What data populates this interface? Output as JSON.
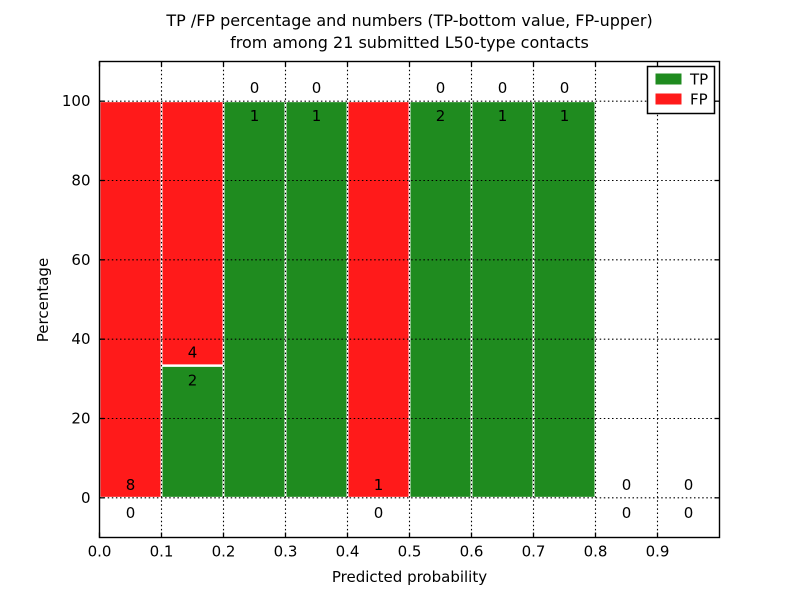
{
  "chart_data": {
    "type": "bar",
    "stacked": true,
    "title_lines": [
      "TP /FP percentage and numbers (TP-bottom value, FP-upper)",
      "from among 21 submitted L50-type contacts"
    ],
    "xlabel": "Predicted probability",
    "ylabel": "Percentage",
    "xlim": [
      0.0,
      1.0
    ],
    "ylim": [
      -10,
      110
    ],
    "xticks": [
      "0.0",
      "0.1",
      "0.2",
      "0.3",
      "0.4",
      "0.5",
      "0.6",
      "0.7",
      "0.8",
      "0.9"
    ],
    "yticks": [
      0,
      20,
      40,
      60,
      80,
      100
    ],
    "grid": true,
    "total_contacts": 21,
    "colors": {
      "tp": "#1f8b1f",
      "fp": "#ff1a1a"
    },
    "legend": {
      "position": "upper right",
      "entries": [
        {
          "label": "TP",
          "color": "#1f8b1f"
        },
        {
          "label": "FP",
          "color": "#ff1a1a"
        }
      ]
    },
    "bins": [
      {
        "range": [
          0.0,
          0.1
        ],
        "tp": 0,
        "fp": 8,
        "tp_pct": 0.0,
        "fp_pct": 100.0
      },
      {
        "range": [
          0.1,
          0.2
        ],
        "tp": 2,
        "fp": 4,
        "tp_pct": 33.333,
        "fp_pct": 66.667
      },
      {
        "range": [
          0.2,
          0.3
        ],
        "tp": 1,
        "fp": 0,
        "tp_pct": 100.0,
        "fp_pct": 0.0
      },
      {
        "range": [
          0.3,
          0.4
        ],
        "tp": 1,
        "fp": 0,
        "tp_pct": 100.0,
        "fp_pct": 0.0
      },
      {
        "range": [
          0.4,
          0.5
        ],
        "tp": 0,
        "fp": 1,
        "tp_pct": 0.0,
        "fp_pct": 100.0
      },
      {
        "range": [
          0.5,
          0.6
        ],
        "tp": 2,
        "fp": 0,
        "tp_pct": 100.0,
        "fp_pct": 0.0
      },
      {
        "range": [
          0.6,
          0.7
        ],
        "tp": 1,
        "fp": 0,
        "tp_pct": 100.0,
        "fp_pct": 0.0
      },
      {
        "range": [
          0.7,
          0.8
        ],
        "tp": 1,
        "fp": 0,
        "tp_pct": 100.0,
        "fp_pct": 0.0
      },
      {
        "range": [
          0.8,
          0.9
        ],
        "tp": 0,
        "fp": 0,
        "tp_pct": 0.0,
        "fp_pct": 0.0
      },
      {
        "range": [
          0.9,
          1.0
        ],
        "tp": 0,
        "fp": 0,
        "tp_pct": 0.0,
        "fp_pct": 0.0
      }
    ]
  }
}
